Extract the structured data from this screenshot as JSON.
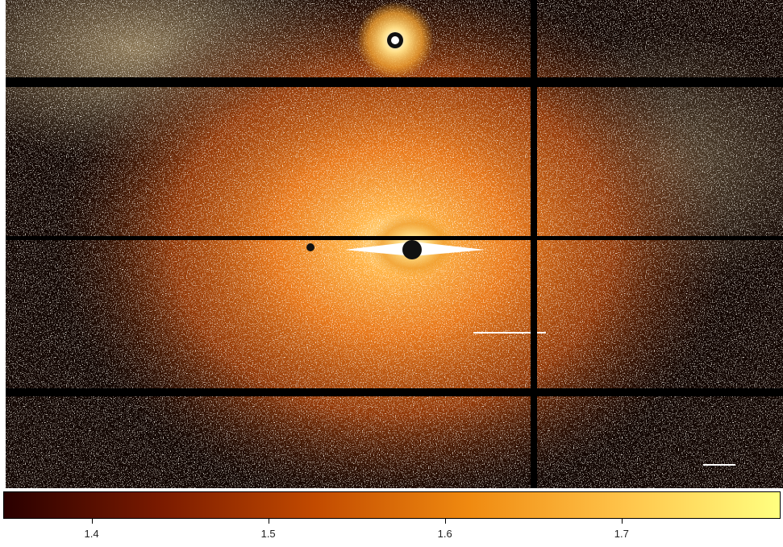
{
  "image": {
    "subject": "astronomical-image",
    "colormap": "heat",
    "colors": {
      "background": "#120602",
      "core": "#ffd98a",
      "halo": "#e07a1a",
      "mid": "#a8420a",
      "noise": "#fff7e6",
      "chip_gap": "#000000"
    }
  },
  "colorbar": {
    "colormap_stops": [
      "#2a0000",
      "#7a1a00",
      "#c24a00",
      "#f08a10",
      "#ffc44a",
      "#ffff80"
    ],
    "ticks": [
      {
        "label": "1.4",
        "value": 1.4
      },
      {
        "label": "1.5",
        "value": 1.5
      },
      {
        "label": "1.6",
        "value": 1.6
      },
      {
        "label": "1.7",
        "value": 1.7
      }
    ],
    "range": [
      1.35,
      1.79
    ]
  }
}
